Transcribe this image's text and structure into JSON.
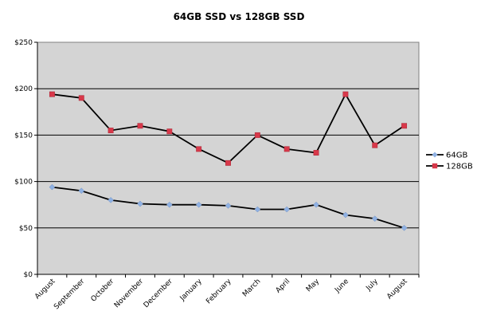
{
  "chart_data": {
    "type": "line",
    "title": "64GB SSD vs 128GB SSD",
    "xlabel": "",
    "ylabel": "",
    "categories": [
      "August",
      "September",
      "October",
      "November",
      "December",
      "January",
      "February",
      "March",
      "April",
      "May",
      "June",
      "July",
      "August"
    ],
    "ylim": [
      0,
      250
    ],
    "yticks": [
      "$0",
      "$50",
      "$100",
      "$150",
      "$200",
      "$250"
    ],
    "grid": true,
    "legend_position": "right",
    "series": [
      {
        "name": "64GB",
        "color": "#000000",
        "marker_color": "#8fb1e3",
        "values": [
          94,
          90,
          80,
          76,
          75,
          75,
          74,
          70,
          70,
          75,
          64,
          60,
          50
        ]
      },
      {
        "name": "128GB",
        "color": "#000000",
        "marker_color": "#d8384a",
        "values": [
          194,
          190,
          155,
          160,
          154,
          135,
          120,
          150,
          135,
          131,
          194,
          139,
          160
        ]
      }
    ]
  }
}
